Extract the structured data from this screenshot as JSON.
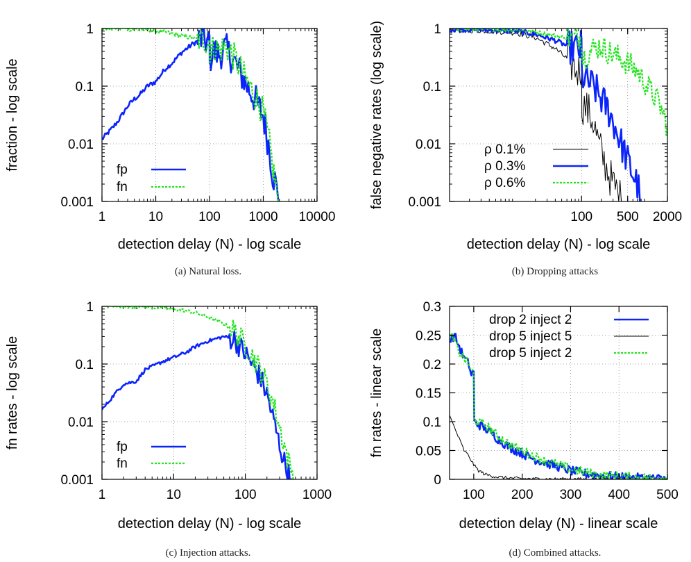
{
  "figure": {
    "panels": [
      {
        "caption": "(a)  Natural loss."
      },
      {
        "caption": "(b)  Dropping attacks"
      },
      {
        "caption": "(c)  Injection attacks."
      },
      {
        "caption": "(d)  Combined attacks."
      }
    ]
  },
  "colors": {
    "blue": "#0b24fb",
    "green": "#21e51d",
    "black": "#000000"
  },
  "chart_data": [
    {
      "type": "line",
      "xlabel": "detection delay (N) - log scale",
      "ylabel": "fraction - log scale",
      "xscale": "log",
      "yscale": "log",
      "xlim": [
        1,
        10000
      ],
      "ylim": [
        0.001,
        1
      ],
      "xticks": [
        1,
        10,
        100,
        1000,
        10000
      ],
      "xtick_labels": [
        "1",
        "10",
        "100",
        "1000",
        "10000"
      ],
      "yticks": [
        0.001,
        0.01,
        0.1,
        1
      ],
      "ytick_labels": [
        "0.001",
        "0.01",
        "0.1",
        "1"
      ],
      "grid": true,
      "legend_position": "bottom-left",
      "series": [
        {
          "name": "fp",
          "color": "#0b24fb",
          "style": "solid",
          "width": 2.6,
          "x": [
            1,
            1.5,
            2,
            3,
            4,
            5,
            7,
            10,
            15,
            20,
            30,
            50,
            70,
            90,
            95,
            100,
            101,
            120,
            150,
            200,
            300,
            400,
            500,
            700,
            1000,
            1300,
            1500,
            1700,
            1900
          ],
          "y": [
            0.012,
            0.018,
            0.025,
            0.045,
            0.06,
            0.07,
            0.1,
            0.12,
            0.2,
            0.25,
            0.38,
            0.55,
            0.65,
            0.6,
            0.55,
            0.6,
            0.3,
            0.4,
            0.35,
            0.45,
            0.25,
            0.15,
            0.1,
            0.06,
            0.03,
            0.008,
            0.003,
            0.002,
            0.001
          ],
          "noise": 0.28
        },
        {
          "name": "fn",
          "color": "#21e51d",
          "style": "dashed",
          "width": 2.2,
          "x": [
            1,
            2,
            3,
            5,
            7,
            10,
            15,
            20,
            30,
            50,
            70,
            90,
            100,
            101,
            120,
            150,
            200,
            300,
            400,
            500,
            700,
            1000,
            1300,
            1500,
            1700,
            1900
          ],
          "y": [
            1,
            0.99,
            0.98,
            0.96,
            0.93,
            0.9,
            0.86,
            0.82,
            0.75,
            0.68,
            0.63,
            0.62,
            0.65,
            0.4,
            0.48,
            0.42,
            0.5,
            0.3,
            0.18,
            0.12,
            0.07,
            0.035,
            0.01,
            0.004,
            0.002,
            0.001
          ],
          "noise": 0.25
        }
      ]
    },
    {
      "type": "line",
      "xlabel": "detection delay (N) - log scale",
      "ylabel": "false negative rates (log scale)",
      "xscale": "log",
      "yscale": "log",
      "xlim": [
        1,
        2000
      ],
      "ylim": [
        0.001,
        1
      ],
      "xticks": [
        100,
        500,
        2000
      ],
      "xtick_labels": [
        "100",
        "500",
        "2000"
      ],
      "yticks": [
        0.001,
        0.01,
        0.1,
        1
      ],
      "ytick_labels": [
        "0.001",
        "0.01",
        "0.1",
        "1"
      ],
      "grid": true,
      "legend_position": "bottom-left",
      "series": [
        {
          "name": "ρ 0.1%",
          "color": "#000000",
          "style": "solid",
          "width": 1.0,
          "x": [
            1,
            3,
            10,
            20,
            40,
            60,
            80,
            95,
            100,
            101,
            120,
            150,
            180,
            220,
            260,
            300,
            350,
            400
          ],
          "y": [
            0.95,
            0.93,
            0.85,
            0.7,
            0.45,
            0.3,
            0.2,
            0.18,
            0.25,
            0.05,
            0.04,
            0.025,
            0.01,
            0.005,
            0.003,
            0.002,
            0.0015,
            0.001
          ],
          "noise": 0.35
        },
        {
          "name": "ρ 0.3%",
          "color": "#0b24fb",
          "style": "solid",
          "width": 2.6,
          "x": [
            1,
            3,
            10,
            20,
            40,
            60,
            80,
            95,
            100,
            101,
            120,
            150,
            200,
            250,
            300,
            400,
            500,
            600,
            700,
            800
          ],
          "y": [
            0.97,
            0.95,
            0.9,
            0.8,
            0.62,
            0.5,
            0.45,
            0.42,
            0.55,
            0.15,
            0.12,
            0.1,
            0.06,
            0.04,
            0.025,
            0.01,
            0.005,
            0.003,
            0.002,
            0.001
          ],
          "noise": 0.3
        },
        {
          "name": "ρ 0.6%",
          "color": "#21e51d",
          "style": "dashed",
          "width": 2.2,
          "x": [
            1,
            3,
            10,
            20,
            40,
            60,
            80,
            95,
            100,
            101,
            120,
            150,
            200,
            250,
            300,
            400,
            500,
            700,
            1000,
            1500,
            2000
          ],
          "y": [
            0.98,
            0.97,
            0.94,
            0.88,
            0.75,
            0.68,
            0.66,
            0.7,
            0.75,
            0.3,
            0.35,
            0.45,
            0.5,
            0.4,
            0.35,
            0.3,
            0.25,
            0.18,
            0.1,
            0.05,
            0.02
          ],
          "noise": 0.22
        }
      ]
    },
    {
      "type": "line",
      "xlabel": "detection delay (N) - log scale",
      "ylabel": "fn rates - log scale",
      "xscale": "log",
      "yscale": "log",
      "xlim": [
        1,
        1000
      ],
      "ylim": [
        0.001,
        1
      ],
      "xticks": [
        1,
        10,
        100,
        1000
      ],
      "xtick_labels": [
        "1",
        "10",
        "100",
        "1000"
      ],
      "yticks": [
        0.001,
        0.01,
        0.1,
        1
      ],
      "ytick_labels": [
        "0.001",
        "0.01",
        "0.1",
        "1"
      ],
      "grid": true,
      "legend_position": "bottom-left",
      "series": [
        {
          "name": "fp",
          "color": "#0b24fb",
          "style": "solid",
          "width": 2.6,
          "x": [
            1,
            1.5,
            2,
            3,
            4,
            5,
            7,
            10,
            15,
            20,
            30,
            50,
            70,
            100,
            130,
            160,
            200,
            250,
            300,
            350,
            400,
            450
          ],
          "y": [
            0.016,
            0.03,
            0.045,
            0.05,
            0.08,
            0.09,
            0.11,
            0.13,
            0.16,
            0.2,
            0.25,
            0.3,
            0.27,
            0.15,
            0.09,
            0.06,
            0.03,
            0.01,
            0.004,
            0.002,
            0.0012,
            0.001
          ],
          "noise": 0.2
        },
        {
          "name": "fn",
          "color": "#21e51d",
          "style": "dashed",
          "width": 2.2,
          "x": [
            1,
            2,
            3,
            5,
            7,
            10,
            15,
            20,
            30,
            50,
            70,
            100,
            130,
            160,
            200,
            250,
            300,
            350,
            400,
            450,
            480
          ],
          "y": [
            1,
            0.99,
            0.98,
            0.96,
            0.93,
            0.9,
            0.84,
            0.78,
            0.65,
            0.5,
            0.38,
            0.22,
            0.13,
            0.08,
            0.045,
            0.02,
            0.008,
            0.004,
            0.002,
            0.0013,
            0.001
          ],
          "noise": 0.2
        }
      ]
    },
    {
      "type": "line",
      "xlabel": "detection delay (N) - linear scale",
      "ylabel": "fn rates - linear scale",
      "xscale": "linear",
      "yscale": "linear",
      "xlim": [
        50,
        500
      ],
      "ylim": [
        0,
        0.3
      ],
      "xticks": [
        100,
        200,
        300,
        400,
        500
      ],
      "xtick_labels": [
        "100",
        "200",
        "300",
        "400",
        "500"
      ],
      "yticks": [
        0,
        0.05,
        0.1,
        0.15,
        0.2,
        0.25,
        0.3
      ],
      "ytick_labels": [
        "0",
        "0.05",
        "0.1",
        "0.15",
        "0.2",
        "0.25",
        "0.3"
      ],
      "grid": true,
      "legend_position": "top-right",
      "series": [
        {
          "name": "drop 2 inject 2",
          "color": "#0b24fb",
          "style": "solid",
          "width": 2.6,
          "x": [
            50,
            60,
            70,
            80,
            90,
            95,
            100,
            101,
            110,
            130,
            150,
            175,
            200,
            225,
            250,
            275,
            300,
            330,
            360,
            400,
            450,
            500
          ],
          "y": [
            0.24,
            0.25,
            0.23,
            0.21,
            0.2,
            0.18,
            0.19,
            0.1,
            0.095,
            0.085,
            0.07,
            0.055,
            0.045,
            0.035,
            0.028,
            0.022,
            0.015,
            0.01,
            0.007,
            0.004,
            0.002,
            0.001
          ],
          "noise": 0.008
        },
        {
          "name": "drop 5 inject 5",
          "color": "#000000",
          "style": "solid",
          "width": 1.0,
          "x": [
            50,
            60,
            70,
            80,
            90,
            100,
            110,
            125,
            150,
            175,
            200,
            250,
            300,
            400,
            500
          ],
          "y": [
            0.11,
            0.09,
            0.07,
            0.05,
            0.04,
            0.025,
            0.015,
            0.008,
            0.004,
            0.002,
            0.001,
            0.0005,
            0.0003,
            0.0002,
            0.0001
          ],
          "noise": 0.003
        },
        {
          "name": "drop 5 inject 2",
          "color": "#21e51d",
          "style": "dashed",
          "width": 2.2,
          "x": [
            50,
            60,
            70,
            80,
            90,
            95,
            100,
            101,
            110,
            130,
            150,
            175,
            200,
            225,
            250,
            275,
            300,
            330,
            360,
            400,
            450,
            500
          ],
          "y": [
            0.25,
            0.24,
            0.22,
            0.21,
            0.2,
            0.19,
            0.18,
            0.1,
            0.1,
            0.09,
            0.075,
            0.06,
            0.05,
            0.04,
            0.032,
            0.025,
            0.018,
            0.012,
            0.008,
            0.005,
            0.003,
            0.002
          ],
          "noise": 0.008
        }
      ]
    }
  ]
}
